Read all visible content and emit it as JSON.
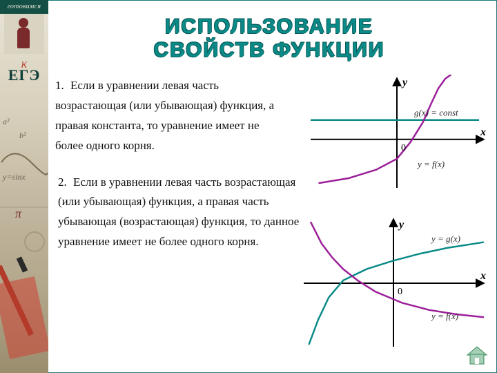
{
  "strip": {
    "top_text": "готовимся",
    "k": "к",
    "ege": "ЕГЭ"
  },
  "title": {
    "line1": "ИСПОЛЬЗОВАНИЕ",
    "line2": "СВОЙСТВ ФУНКЦИИ"
  },
  "paragraphs": {
    "p1_num": "1.",
    "p1_text": "Если в уравнении  левая часть возрастающая (или убывающая) функция, а правая константа, то уравнение имеет не более одного корня.",
    "p2_num": "2.",
    "p2_text": "Если в уравнении  левая часть возрастающая (или убывающая) функция, а правая часть  убывающая (возрастающая) функция, то данное уравнение имеет не более одного корня."
  },
  "graph1": {
    "type": "line",
    "x_label": "x",
    "y_label": "y",
    "origin_label": "0",
    "g_label": "g(x) = const",
    "f_label": "y = f(x)",
    "axis_color": "#000000",
    "arrow_color": "#000000",
    "const_line_color": "#0a8b88",
    "curve_color": "#9b1f99",
    "background_color": "#ffffff",
    "label_color_g": "#2a2a2a",
    "label_color_f": "#2a2a2a",
    "axis_fontsize": 16,
    "eqn_fontsize": 13,
    "line_width_axis": 2,
    "line_width_curve": 2.5,
    "xlim": [
      -5,
      5
    ],
    "ylim": [
      -4,
      5
    ],
    "const_y": 1.6,
    "f_points_x": [
      -4.5,
      -2.8,
      -1.2,
      0,
      0.8,
      1.5,
      2.0,
      2.4,
      2.8,
      3.1
    ],
    "f_points_y": [
      -3.6,
      -3.2,
      -2.5,
      -1.6,
      -0.2,
      1.4,
      3.0,
      4.2,
      5.0,
      5.3
    ]
  },
  "graph2": {
    "type": "line",
    "x_label": "x",
    "y_label": "y",
    "origin_label": "0",
    "g_label": "y = g(x)",
    "f_label": "y = f(x)",
    "axis_color": "#000000",
    "curve_g_color": "#0a8b88",
    "curve_f_color": "#9b1f99",
    "background_color": "#ffffff",
    "label_color_g": "#2a2a2a",
    "label_color_f": "#2a2a2a",
    "axis_fontsize": 16,
    "eqn_fontsize": 13,
    "line_width_axis": 2,
    "line_width_curve": 2.5,
    "xlim": [
      -5,
      5
    ],
    "ylim": [
      -4.5,
      4.5
    ],
    "g_points_x": [
      -4.7,
      -4.2,
      -3.6,
      -2.8,
      -1.5,
      0,
      1.5,
      3.0,
      4.5,
      5.0
    ],
    "g_points_y": [
      -4.3,
      -2.6,
      -1.0,
      0.2,
      1.0,
      1.6,
      2.1,
      2.5,
      2.8,
      2.9
    ],
    "f_points_x": [
      -4.6,
      -4.0,
      -3.4,
      -2.8,
      -2.0,
      -1.0,
      0.5,
      2.0,
      3.5,
      5.0
    ],
    "f_points_y": [
      4.3,
      2.8,
      1.8,
      1.0,
      0.2,
      -0.6,
      -1.4,
      -1.9,
      -2.2,
      -2.4
    ]
  },
  "home": {
    "fill": "#a5ceb6",
    "stroke": "#3a8a5a"
  }
}
